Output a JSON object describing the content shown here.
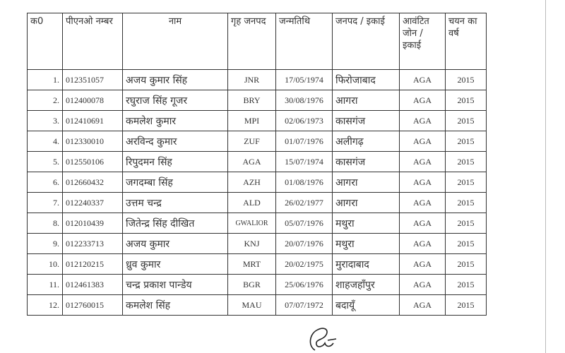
{
  "headers": [
    "क0",
    "पीएनओ नम्बर",
    "नाम",
    "गृह जनपद",
    "जन्मतिथि",
    "जनपद / इकाई",
    "आवंटित जोन / इकाई",
    "चयन का वर्ष"
  ],
  "rows": [
    [
      "1.",
      "012351057",
      "अजय कुमार सिंह",
      "JNR",
      "17/05/1974",
      "फिरोजाबाद",
      "AGA",
      "2015"
    ],
    [
      "2.",
      "012400078",
      "रघुराज सिंह गूजर",
      "BRY",
      "30/08/1976",
      "आगरा",
      "AGA",
      "2015"
    ],
    [
      "3.",
      "012410691",
      "कमलेश कुमार",
      "MPI",
      "02/06/1973",
      "कासगंज",
      "AGA",
      "2015"
    ],
    [
      "4.",
      "012330010",
      "अरविन्द कुमार",
      "ZUF",
      "01/07/1976",
      "अलीगढ़",
      "AGA",
      "2015"
    ],
    [
      "5.",
      "012550106",
      "रिपुदमन सिंह",
      "AGA",
      "15/07/1974",
      "कासगंज",
      "AGA",
      "2015"
    ],
    [
      "6.",
      "012660432",
      "जगदम्बा सिंह",
      "AZH",
      "01/08/1976",
      "आगरा",
      "AGA",
      "2015"
    ],
    [
      "7.",
      "012240337",
      "उत्तम चन्द्र",
      "ALD",
      "26/02/1977",
      "आगरा",
      "AGA",
      "2015"
    ],
    [
      "8.",
      "012010439",
      "जितेन्द्र सिंह दीखित",
      "GWALIOR",
      "05/07/1976",
      "मथुरा",
      "AGA",
      "2015"
    ],
    [
      "9.",
      "012233713",
      "अजय कुमार",
      "KNJ",
      "20/07/1976",
      "मथुरा",
      "AGA",
      "2015"
    ],
    [
      "10.",
      "012120215",
      "ध्रुव कुमार",
      "MRT",
      "20/02/1975",
      "मुरादाबाद",
      "AGA",
      "2015"
    ],
    [
      "11.",
      "012461383",
      "चन्द्र प्रकाश पान्डेय",
      "BGR",
      "25/06/1976",
      "शाहजहाँपुर",
      "AGA",
      "2015"
    ],
    [
      "12.",
      "012760015",
      "कमलेश सिंह",
      "MAU",
      "07/07/1972",
      "बदायूँ",
      "AGA",
      "2015"
    ]
  ]
}
